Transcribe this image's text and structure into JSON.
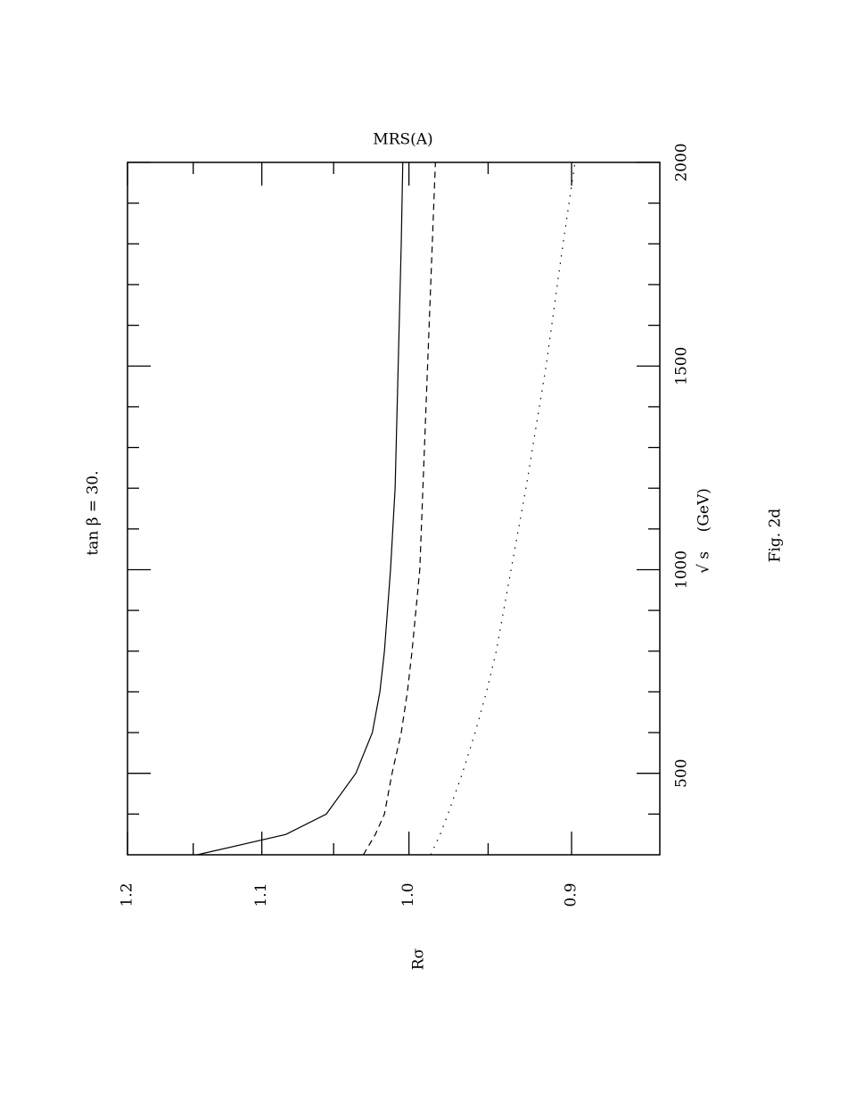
{
  "chart_data": {
    "type": "line",
    "title": "MRS(A)",
    "annotation": "tan β = 30.",
    "caption": "Fig. 2d",
    "xlabel": "√ s    (GeV)",
    "ylabel": "Rσ",
    "x": [
      300,
      350,
      400,
      500,
      600,
      700,
      800,
      1000,
      1200,
      1500,
      1800,
      2000
    ],
    "series": [
      {
        "color": "#000000",
        "dash": "solid",
        "values": [
          1.147,
          1.083,
          1.055,
          1.035,
          1.024,
          1.019,
          1.016,
          1.012,
          1.009,
          1.007,
          1.005,
          1.004
        ]
      },
      {
        "color": "#000000",
        "dash": "dashed",
        "values": [
          1.03,
          1.022,
          1.016,
          1.011,
          1.005,
          1.001,
          0.998,
          0.993,
          0.991,
          0.988,
          0.985,
          0.983
        ]
      },
      {
        "color": "#000000",
        "dash": "dotted",
        "values": [
          0.986,
          0.98,
          0.975,
          0.966,
          0.958,
          0.951,
          0.945,
          0.936,
          0.927,
          0.915,
          0.905,
          0.898
        ]
      }
    ],
    "xlim": [
      300,
      2000
    ],
    "xticks": [
      500,
      1000,
      1500,
      2000
    ],
    "xminorticks": [
      400,
      600,
      700,
      800,
      900,
      1100,
      1200,
      1300,
      1400,
      1600,
      1700,
      1800,
      1900
    ],
    "ylim": [
      0.85,
      1.2
    ],
    "yticks": [
      1.2,
      1.1,
      {
        "value": 1,
        "label": "1.0"
      },
      0.9
    ],
    "yminorticks": [
      1.15,
      1.05,
      0.95
    ],
    "ylog": true,
    "rotated": true
  }
}
